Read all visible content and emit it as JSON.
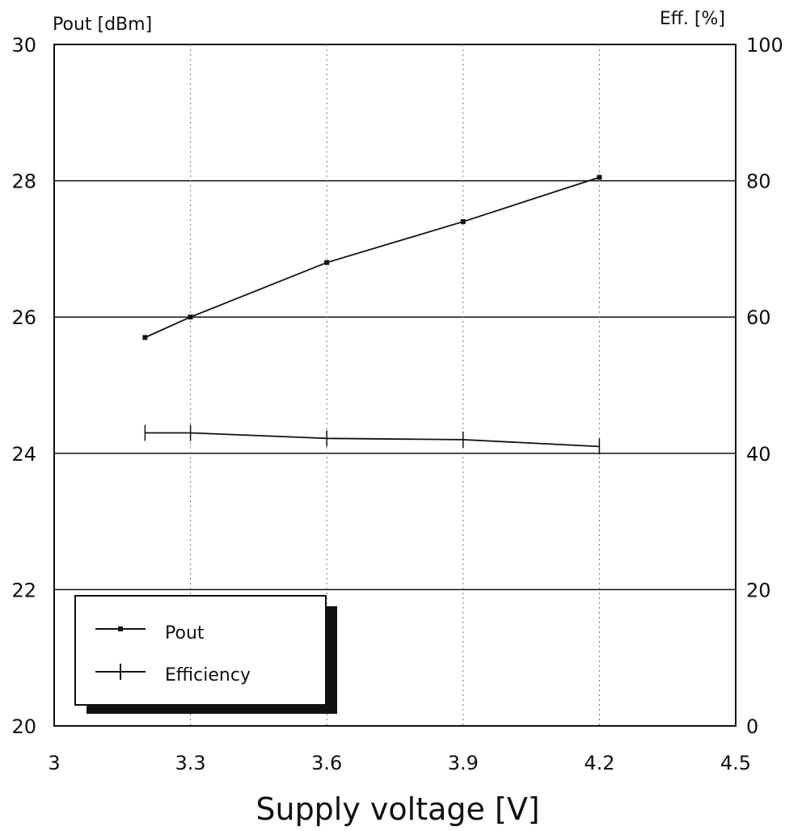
{
  "chart_data": {
    "type": "line",
    "xlabel": "Supply voltage [V]",
    "ylabel_left": "Pout [dBm]",
    "ylabel_right": "Eff. [%]",
    "xlim": [
      3,
      4.5
    ],
    "ylim_left": [
      20,
      30
    ],
    "ylim_right": [
      0,
      100
    ],
    "x_ticks": [
      "3",
      "3.3",
      "3.6",
      "3.9",
      "4.2",
      "4.5"
    ],
    "y_ticks_left": [
      "20",
      "22",
      "24",
      "26",
      "28",
      "30"
    ],
    "y_ticks_right": [
      "0",
      "20",
      "40",
      "60",
      "80",
      "100"
    ],
    "grid": "horizontal solid, vertical dotted",
    "legend_position": "bottom-left",
    "series": [
      {
        "name": "Pout",
        "axis": "left",
        "marker": "square",
        "x": [
          3.2,
          3.3,
          3.6,
          3.9,
          4.2
        ],
        "y": [
          25.7,
          26.0,
          26.8,
          27.4,
          28.05
        ]
      },
      {
        "name": "Efficiency",
        "axis": "right",
        "marker": "plus",
        "x": [
          3.2,
          3.3,
          3.6,
          3.9,
          4.2
        ],
        "y": [
          43,
          43,
          42.2,
          42,
          41
        ]
      }
    ]
  }
}
